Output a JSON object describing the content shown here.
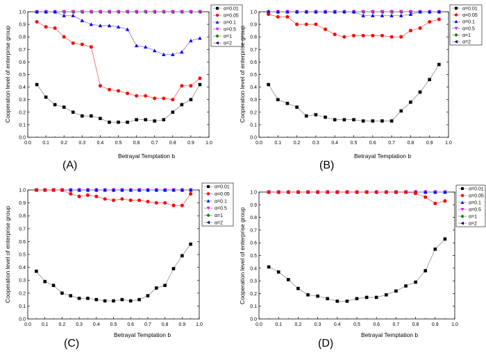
{
  "chart_data": [
    {
      "type": "line",
      "panel": "(A)",
      "xlabel": "Betrayal Temptation b",
      "ylabel": "Cooperation level of enterprise group",
      "xlim": [
        0.0,
        1.0
      ],
      "ylim": [
        0.0,
        1.0
      ],
      "xticks": [
        "0.0",
        "0.1",
        "0.2",
        "0.3",
        "0.4",
        "0.5",
        "0.6",
        "0.7",
        "0.8",
        "0.9",
        "1.0"
      ],
      "yticks": [
        "0.0",
        "0.1",
        "0.2",
        "0.3",
        "0.4",
        "0.5",
        "0.6",
        "0.7",
        "0.8",
        "0.9",
        "1.0"
      ],
      "legend_position": "top-right",
      "x": [
        0.05,
        0.1,
        0.15,
        0.2,
        0.25,
        0.3,
        0.35,
        0.4,
        0.45,
        0.5,
        0.55,
        0.6,
        0.65,
        0.7,
        0.75,
        0.8,
        0.85,
        0.9,
        0.95
      ],
      "series": [
        {
          "name": "α=0.01",
          "values": [
            0.42,
            0.32,
            0.26,
            0.24,
            0.2,
            0.17,
            0.17,
            0.15,
            0.12,
            0.12,
            0.12,
            0.14,
            0.14,
            0.13,
            0.14,
            0.2,
            0.26,
            0.3,
            0.42
          ]
        },
        {
          "name": "α=0.05",
          "values": [
            0.92,
            0.88,
            0.87,
            0.8,
            0.75,
            0.74,
            0.72,
            0.41,
            0.38,
            0.37,
            0.35,
            0.33,
            0.33,
            0.31,
            0.31,
            0.3,
            0.41,
            0.41,
            0.47
          ]
        },
        {
          "name": "α=0.1",
          "values": [
            1.0,
            1.0,
            1.0,
            0.97,
            0.97,
            0.93,
            0.9,
            0.89,
            0.89,
            0.88,
            0.86,
            0.73,
            0.72,
            0.69,
            0.66,
            0.66,
            0.68,
            0.77,
            0.79
          ]
        },
        {
          "name": "α=0.5",
          "values": [
            1.0,
            1.0,
            1.0,
            1.0,
            1.0,
            1.0,
            1.0,
            1.0,
            1.0,
            1.0,
            1.0,
            1.0,
            1.0,
            1.0,
            1.0,
            1.0,
            1.0,
            1.0,
            1.0
          ]
        },
        {
          "name": "α=1",
          "values": [
            1.0,
            1.0,
            1.0,
            1.0,
            1.0,
            1.0,
            1.0,
            1.0,
            1.0,
            1.0,
            1.0,
            1.0,
            1.0,
            1.0,
            1.0,
            1.0,
            1.0,
            1.0,
            1.0
          ]
        },
        {
          "name": "α=2",
          "values": [
            1.0,
            1.0,
            1.0,
            1.0,
            1.0,
            1.0,
            1.0,
            1.0,
            1.0,
            1.0,
            1.0,
            1.0,
            1.0,
            1.0,
            1.0,
            1.0,
            1.0,
            1.0,
            1.0
          ]
        }
      ]
    },
    {
      "type": "line",
      "panel": "(B)",
      "xlabel": "Betrayal Temptation b",
      "ylabel": "Cooperation level of enterprise group",
      "xlim": [
        0.0,
        1.0
      ],
      "ylim": [
        0.0,
        1.0
      ],
      "xticks": [
        "0.0",
        "0.1",
        "0.2",
        "0.3",
        "0.4",
        "0.5",
        "0.6",
        "0.7",
        "0.8",
        "0.9",
        "1.0"
      ],
      "yticks": [
        "0.0",
        "0.1",
        "0.2",
        "0.3",
        "0.4",
        "0.5",
        "0.6",
        "0.7",
        "0.8",
        "0.9",
        "1.0"
      ],
      "legend_position": "top-right",
      "x": [
        0.05,
        0.1,
        0.15,
        0.2,
        0.25,
        0.3,
        0.35,
        0.4,
        0.45,
        0.5,
        0.55,
        0.6,
        0.65,
        0.7,
        0.75,
        0.8,
        0.85,
        0.9,
        0.95
      ],
      "series": [
        {
          "name": "α=0.01",
          "values": [
            0.42,
            0.3,
            0.27,
            0.24,
            0.17,
            0.18,
            0.16,
            0.14,
            0.14,
            0.14,
            0.13,
            0.13,
            0.13,
            0.13,
            0.21,
            0.28,
            0.36,
            0.46,
            0.58
          ]
        },
        {
          "name": "α=0.05",
          "values": [
            0.98,
            0.96,
            0.96,
            0.9,
            0.9,
            0.9,
            0.86,
            0.82,
            0.8,
            0.81,
            0.81,
            0.81,
            0.81,
            0.8,
            0.8,
            0.85,
            0.87,
            0.92,
            0.94
          ]
        },
        {
          "name": "α=0.1",
          "values": [
            1.0,
            1.0,
            1.0,
            1.0,
            1.0,
            1.0,
            1.0,
            1.0,
            1.0,
            1.0,
            0.97,
            0.97,
            0.97,
            0.97,
            0.97,
            0.98,
            1.0,
            1.0,
            1.0
          ]
        },
        {
          "name": "α=0.5",
          "values": [
            1.0,
            1.0,
            1.0,
            1.0,
            1.0,
            1.0,
            1.0,
            1.0,
            1.0,
            1.0,
            1.0,
            1.0,
            1.0,
            1.0,
            1.0,
            1.0,
            1.0,
            1.0,
            1.0
          ]
        },
        {
          "name": "α=1",
          "values": [
            1.0,
            1.0,
            1.0,
            1.0,
            1.0,
            1.0,
            1.0,
            1.0,
            1.0,
            1.0,
            1.0,
            1.0,
            1.0,
            1.0,
            1.0,
            1.0,
            1.0,
            1.0,
            1.0
          ]
        },
        {
          "name": "α=2",
          "values": [
            1.0,
            1.0,
            1.0,
            1.0,
            1.0,
            1.0,
            1.0,
            1.0,
            1.0,
            1.0,
            1.0,
            1.0,
            1.0,
            1.0,
            1.0,
            1.0,
            1.0,
            1.0,
            1.0
          ]
        }
      ]
    },
    {
      "type": "line",
      "panel": "(C)",
      "xlabel": "Betrayal Temptation b",
      "ylabel": "Cooperation level of enterprise group",
      "xlim": [
        0.0,
        1.0
      ],
      "ylim": [
        0.0,
        1.0
      ],
      "xticks": [
        "0.0",
        "0.1",
        "0.2",
        "0.3",
        "0.4",
        "0.5",
        "0.6",
        "0.7",
        "0.8",
        "0.9",
        "1.0"
      ],
      "yticks": [
        "0.0",
        "0.1",
        "0.2",
        "0.3",
        "0.4",
        "0.5",
        "0.6",
        "0.7",
        "0.8",
        "0.9",
        "1.0"
      ],
      "legend_position": "top-right",
      "x": [
        0.05,
        0.1,
        0.15,
        0.2,
        0.25,
        0.3,
        0.35,
        0.4,
        0.45,
        0.5,
        0.55,
        0.6,
        0.65,
        0.7,
        0.75,
        0.8,
        0.85,
        0.9,
        0.95
      ],
      "series": [
        {
          "name": "α=0.01",
          "values": [
            0.37,
            0.29,
            0.26,
            0.2,
            0.18,
            0.16,
            0.16,
            0.15,
            0.14,
            0.14,
            0.15,
            0.14,
            0.15,
            0.18,
            0.24,
            0.26,
            0.39,
            0.49,
            0.58
          ]
        },
        {
          "name": "α=0.05",
          "values": [
            1.0,
            1.0,
            1.0,
            1.0,
            0.97,
            0.95,
            0.96,
            0.95,
            0.93,
            0.92,
            0.93,
            0.92,
            0.92,
            0.91,
            0.9,
            0.9,
            0.88,
            0.88,
            0.97
          ]
        },
        {
          "name": "α=0.1",
          "values": [
            1.0,
            1.0,
            1.0,
            1.0,
            1.0,
            1.0,
            1.0,
            1.0,
            1.0,
            1.0,
            1.0,
            1.0,
            1.0,
            1.0,
            1.0,
            1.0,
            1.0,
            1.0,
            1.0
          ]
        },
        {
          "name": "α=0.5",
          "values": [
            1.0,
            1.0,
            1.0,
            1.0,
            1.0,
            1.0,
            1.0,
            1.0,
            1.0,
            1.0,
            1.0,
            1.0,
            1.0,
            1.0,
            1.0,
            1.0,
            1.0,
            1.0,
            1.0
          ]
        },
        {
          "name": "α=1",
          "values": [
            1.0,
            1.0,
            1.0,
            1.0,
            1.0,
            1.0,
            1.0,
            1.0,
            1.0,
            1.0,
            1.0,
            1.0,
            1.0,
            1.0,
            1.0,
            1.0,
            1.0,
            1.0,
            1.0
          ]
        },
        {
          "name": "α=2",
          "values": [
            1.0,
            1.0,
            1.0,
            1.0,
            1.0,
            1.0,
            1.0,
            1.0,
            1.0,
            1.0,
            1.0,
            1.0,
            1.0,
            1.0,
            1.0,
            1.0,
            1.0,
            1.0,
            1.0
          ]
        }
      ]
    },
    {
      "type": "line",
      "panel": "(D)",
      "xlabel": "Betrayal Temptation b",
      "ylabel": "Cooperation level of enterprise group",
      "xlim": [
        0.0,
        1.0
      ],
      "ylim": [
        0.0,
        1.0
      ],
      "xticks": [
        "0.0",
        "0.1",
        "0.2",
        "0.3",
        "0.4",
        "0.5",
        "0.6",
        "0.7",
        "0.8",
        "0.9",
        "1.0"
      ],
      "yticks": [
        "0.0",
        "0.1",
        "0.2",
        "0.3",
        "0.4",
        "0.5",
        "0.6",
        "0.7",
        "0.8",
        "0.9",
        "1.0"
      ],
      "legend_position": "top-right",
      "x": [
        0.05,
        0.1,
        0.15,
        0.2,
        0.25,
        0.3,
        0.35,
        0.4,
        0.45,
        0.5,
        0.55,
        0.6,
        0.65,
        0.7,
        0.75,
        0.8,
        0.85,
        0.9,
        0.95
      ],
      "series": [
        {
          "name": "α=0.01",
          "values": [
            0.41,
            0.37,
            0.31,
            0.24,
            0.19,
            0.18,
            0.16,
            0.14,
            0.14,
            0.16,
            0.17,
            0.17,
            0.19,
            0.22,
            0.26,
            0.29,
            0.38,
            0.55,
            0.63
          ]
        },
        {
          "name": "α=0.05",
          "values": [
            1.0,
            1.0,
            1.0,
            1.0,
            1.0,
            1.0,
            1.0,
            1.0,
            1.0,
            1.0,
            1.0,
            1.0,
            1.0,
            1.0,
            1.0,
            0.99,
            0.96,
            0.91,
            0.93
          ]
        },
        {
          "name": "α=0.1",
          "values": [
            1.0,
            1.0,
            1.0,
            1.0,
            1.0,
            1.0,
            1.0,
            1.0,
            1.0,
            1.0,
            1.0,
            1.0,
            1.0,
            1.0,
            1.0,
            1.0,
            1.0,
            1.0,
            1.0
          ]
        },
        {
          "name": "α=0.5",
          "values": [
            1.0,
            1.0,
            1.0,
            1.0,
            1.0,
            1.0,
            1.0,
            1.0,
            1.0,
            1.0,
            1.0,
            1.0,
            1.0,
            1.0,
            1.0,
            1.0,
            1.0,
            1.0,
            1.0
          ]
        },
        {
          "name": "α=1",
          "values": [
            1.0,
            1.0,
            1.0,
            1.0,
            1.0,
            1.0,
            1.0,
            1.0,
            1.0,
            1.0,
            1.0,
            1.0,
            1.0,
            1.0,
            1.0,
            1.0,
            1.0,
            1.0,
            1.0
          ]
        },
        {
          "name": "α=2",
          "values": [
            1.0,
            1.0,
            1.0,
            1.0,
            1.0,
            1.0,
            1.0,
            1.0,
            1.0,
            1.0,
            1.0,
            1.0,
            1.0,
            1.0,
            1.0,
            1.0,
            1.0,
            1.0,
            1.0
          ]
        }
      ]
    }
  ],
  "styles": {
    "series_colors": [
      "#000000",
      "#ff0000",
      "#0000ff",
      "#ff00ff",
      "#008000",
      "#000080"
    ],
    "series_markers": [
      "square",
      "circle",
      "triangle-up",
      "triangle-down",
      "diamond",
      "triangle-left"
    ],
    "line_color": "#808080"
  }
}
